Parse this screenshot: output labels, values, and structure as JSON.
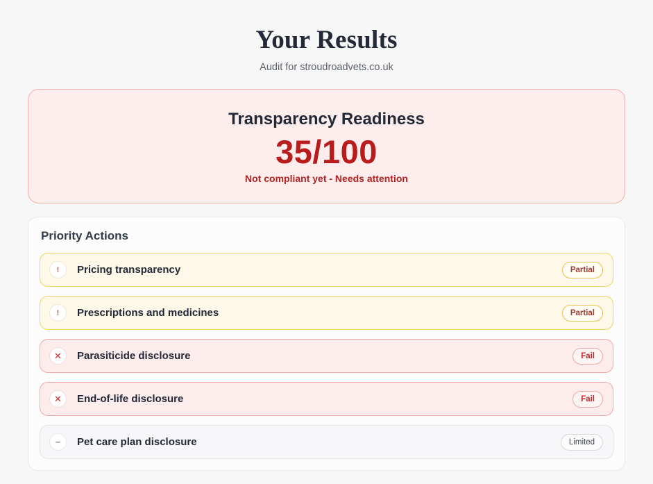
{
  "header": {
    "title": "Your Results",
    "subtitle": "Audit for stroudroadvets.co.uk"
  },
  "score_card": {
    "heading": "Transparency Readiness",
    "score": "35/100",
    "status_message": "Not compliant yet - Needs attention"
  },
  "priority_actions": {
    "heading": "Priority Actions",
    "items": [
      {
        "label": "Pricing transparency",
        "status": "partial",
        "badge": "Partial",
        "icon": "exclamation-icon",
        "icon_glyph": "!"
      },
      {
        "label": "Prescriptions and medicines",
        "status": "partial",
        "badge": "Partial",
        "icon": "exclamation-icon",
        "icon_glyph": "!"
      },
      {
        "label": "Parasiticide disclosure",
        "status": "fail",
        "badge": "Fail",
        "icon": "cross-icon",
        "icon_glyph": "✕"
      },
      {
        "label": "End-of-life disclosure",
        "status": "fail",
        "badge": "Fail",
        "icon": "cross-icon",
        "icon_glyph": "✕"
      },
      {
        "label": "Pet care plan disclosure",
        "status": "limited",
        "badge": "Limited",
        "icon": "minus-icon",
        "icon_glyph": "−"
      }
    ]
  },
  "colors": {
    "page_background": "#f7f7f8",
    "score_accent": "#b91c1c",
    "score_card_background": "#fdeeed",
    "score_card_border": "#f3aeab",
    "partial_border": "#f1d268",
    "fail_border": "#f3a8a8",
    "limited_border": "#e4e4e9"
  }
}
